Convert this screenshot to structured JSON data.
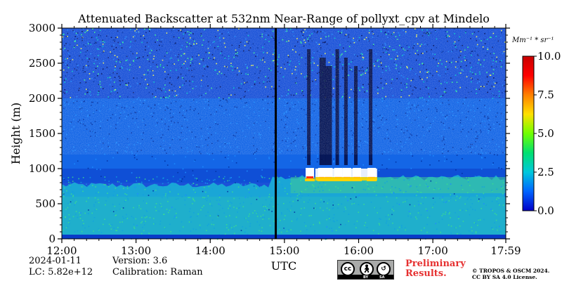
{
  "chart_data": {
    "type": "heatmap",
    "title": "Attenuated Backscatter at 532nm Near-Range of pollyxt_cpv at Mindelo",
    "xlabel": "UTC",
    "ylabel": "Height (m)",
    "x_ticks": [
      "12:00",
      "13:00",
      "14:00",
      "15:00",
      "16:00",
      "17:00",
      "17:59"
    ],
    "x_range": [
      "12:00",
      "17:59"
    ],
    "y_ticks": [
      0,
      500,
      1000,
      1500,
      2000,
      2500,
      3000
    ],
    "ylim": [
      0,
      3000
    ],
    "colorbar": {
      "unit_label": "Mm⁻¹ * sr⁻¹",
      "ticks": [
        "0.0",
        "2.5",
        "5.0",
        "7.5",
        "10.0"
      ],
      "range": [
        0,
        10
      ],
      "colors": [
        "#0000c8",
        "#0064ff",
        "#00c8dc",
        "#00e070",
        "#70ff00",
        "#ffe000",
        "#ff8000",
        "#ff0000",
        "#c80000"
      ]
    },
    "features": {
      "data_gap_time": "14:53",
      "aerosol_layer_top_m": 800,
      "cloud_base_m": 950,
      "cloud_period": [
        "15:30",
        "16:10"
      ],
      "noisy_above_m": 2000
    }
  },
  "footer": {
    "date": "2024-01-11",
    "lc": "LC: 5.82e+12",
    "version": "Version: 3.6",
    "calibration": "Calibration: Raman",
    "preliminary_line1": "Preliminary",
    "preliminary_line2": "Results.",
    "copyright_line1": "© TROPOS & OSCM 2024.",
    "copyright_line2": "CC BY SA 4.0 License.",
    "license_badge": {
      "icon": "cc-by-sa-badge",
      "left": "cc",
      "middle": "BY",
      "right": "SA"
    }
  }
}
